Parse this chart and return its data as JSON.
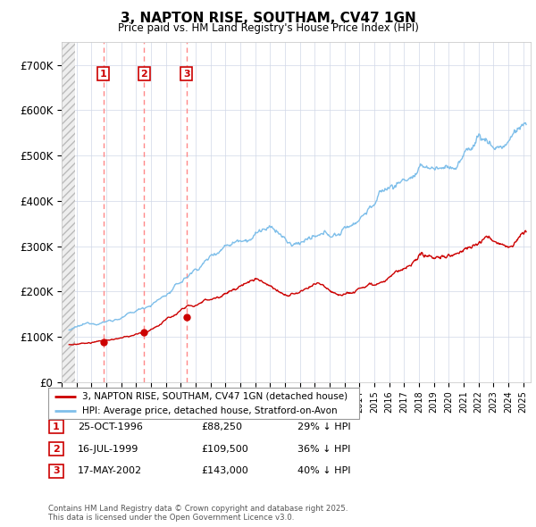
{
  "title": "3, NAPTON RISE, SOUTHAM, CV47 1GN",
  "subtitle": "Price paid vs. HM Land Registry's House Price Index (HPI)",
  "ylim": [
    0,
    750000
  ],
  "yticks": [
    0,
    100000,
    200000,
    300000,
    400000,
    500000,
    600000,
    700000
  ],
  "ytick_labels": [
    "£0",
    "£100K",
    "£200K",
    "£300K",
    "£400K",
    "£500K",
    "£600K",
    "£700K"
  ],
  "hpi_color": "#7fbfea",
  "price_color": "#cc0000",
  "vline_color": "#ff8888",
  "sale_points": [
    {
      "label": "1",
      "date_x": 1996.81,
      "price": 88250
    },
    {
      "label": "2",
      "date_x": 1999.54,
      "price": 109500
    },
    {
      "label": "3",
      "date_x": 2002.38,
      "price": 143000
    }
  ],
  "legend_line1": "3, NAPTON RISE, SOUTHAM, CV47 1GN (detached house)",
  "legend_line2": "HPI: Average price, detached house, Stratford-on-Avon",
  "table_rows": [
    {
      "num": "1",
      "date": "25-OCT-1996",
      "price": "£88,250",
      "hpi": "29% ↓ HPI"
    },
    {
      "num": "2",
      "date": "16-JUL-1999",
      "price": "£109,500",
      "hpi": "36% ↓ HPI"
    },
    {
      "num": "3",
      "date": "17-MAY-2002",
      "price": "£143,000",
      "hpi": "40% ↓ HPI"
    }
  ],
  "footer": "Contains HM Land Registry data © Crown copyright and database right 2025.\nThis data is licensed under the Open Government Licence v3.0.",
  "xmin": 1994,
  "xmax": 2025.5
}
